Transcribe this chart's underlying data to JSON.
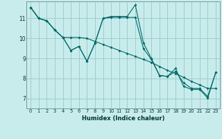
{
  "xlabel": "Humidex (Indice chaleur)",
  "background_color": "#c8ecec",
  "grid_color": "#a0cccc",
  "line_color": "#006868",
  "xlim": [
    -0.5,
    23.5
  ],
  "ylim": [
    6.5,
    11.85
  ],
  "yticks": [
    7,
    8,
    9,
    10,
    11
  ],
  "xticks": [
    0,
    1,
    2,
    3,
    4,
    5,
    6,
    7,
    8,
    9,
    10,
    11,
    12,
    13,
    14,
    15,
    16,
    17,
    18,
    19,
    20,
    21,
    22,
    23
  ],
  "series1_x": [
    0,
    1,
    2,
    3,
    4,
    5,
    6,
    7,
    8,
    9,
    10,
    11,
    12,
    13,
    14,
    15,
    16,
    17,
    18,
    19,
    20,
    21,
    22,
    23
  ],
  "series1_y": [
    11.55,
    11.0,
    10.88,
    10.42,
    10.05,
    9.4,
    9.6,
    8.85,
    9.78,
    11.0,
    11.1,
    11.1,
    11.1,
    11.68,
    9.78,
    9.0,
    8.15,
    8.1,
    8.5,
    7.6,
    7.45,
    7.45,
    7.02,
    8.3
  ],
  "series2_x": [
    0,
    1,
    2,
    3,
    4,
    5,
    6,
    7,
    8,
    9,
    10,
    11,
    12,
    13,
    14,
    15,
    16,
    17,
    18,
    19,
    20,
    21,
    22,
    23
  ],
  "series2_y": [
    11.55,
    11.0,
    10.88,
    10.42,
    10.05,
    10.05,
    10.05,
    10.0,
    9.85,
    9.7,
    9.55,
    9.4,
    9.25,
    9.1,
    8.95,
    8.8,
    8.6,
    8.4,
    8.25,
    8.05,
    7.85,
    7.68,
    7.5,
    7.5
  ],
  "series3_x": [
    0,
    1,
    2,
    3,
    4,
    5,
    6,
    7,
    8,
    9,
    10,
    11,
    12,
    13,
    14,
    15,
    16,
    17,
    18,
    19,
    20,
    21,
    22,
    23
  ],
  "series3_y": [
    11.55,
    11.0,
    10.88,
    10.42,
    10.05,
    9.4,
    9.6,
    8.85,
    9.78,
    11.0,
    11.05,
    11.05,
    11.05,
    11.05,
    9.5,
    8.95,
    8.15,
    8.1,
    8.35,
    7.78,
    7.5,
    7.5,
    7.1,
    8.3
  ]
}
